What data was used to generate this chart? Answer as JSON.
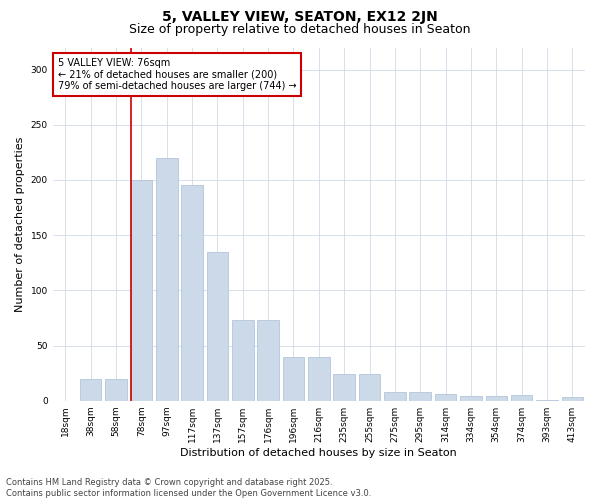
{
  "title": "5, VALLEY VIEW, SEATON, EX12 2JN",
  "subtitle": "Size of property relative to detached houses in Seaton",
  "xlabel": "Distribution of detached houses by size in Seaton",
  "ylabel": "Number of detached properties",
  "categories": [
    "18sqm",
    "38sqm",
    "58sqm",
    "78sqm",
    "97sqm",
    "117sqm",
    "137sqm",
    "157sqm",
    "176sqm",
    "196sqm",
    "216sqm",
    "235sqm",
    "255sqm",
    "275sqm",
    "295sqm",
    "314sqm",
    "334sqm",
    "354sqm",
    "374sqm",
    "393sqm",
    "413sqm"
  ],
  "bar_heights": [
    0,
    20,
    20,
    200,
    220,
    195,
    135,
    73,
    73,
    40,
    40,
    24,
    24,
    8,
    8,
    6,
    4,
    4,
    5,
    1,
    3
  ],
  "annotation_title": "5 VALLEY VIEW: 76sqm",
  "annotation_line1": "← 21% of detached houses are smaller (200)",
  "annotation_line2": "79% of semi-detached houses are larger (744) →",
  "bar_color": "#ccd9e8",
  "bar_edgecolor": "#aabfd8",
  "vline_color": "#cc0000",
  "annotation_box_edgecolor": "#cc0000",
  "annotation_box_facecolor": "#ffffff",
  "background_color": "#ffffff",
  "grid_color": "#d0dae8",
  "ylim": [
    0,
    320
  ],
  "yticks": [
    0,
    50,
    100,
    150,
    200,
    250,
    300
  ],
  "title_fontsize": 10,
  "subtitle_fontsize": 9,
  "xlabel_fontsize": 8,
  "ylabel_fontsize": 8,
  "tick_fontsize": 6.5,
  "annotation_fontsize": 7,
  "footer_fontsize": 6,
  "footer": "Contains HM Land Registry data © Crown copyright and database right 2025.\nContains public sector information licensed under the Open Government Licence v3.0."
}
